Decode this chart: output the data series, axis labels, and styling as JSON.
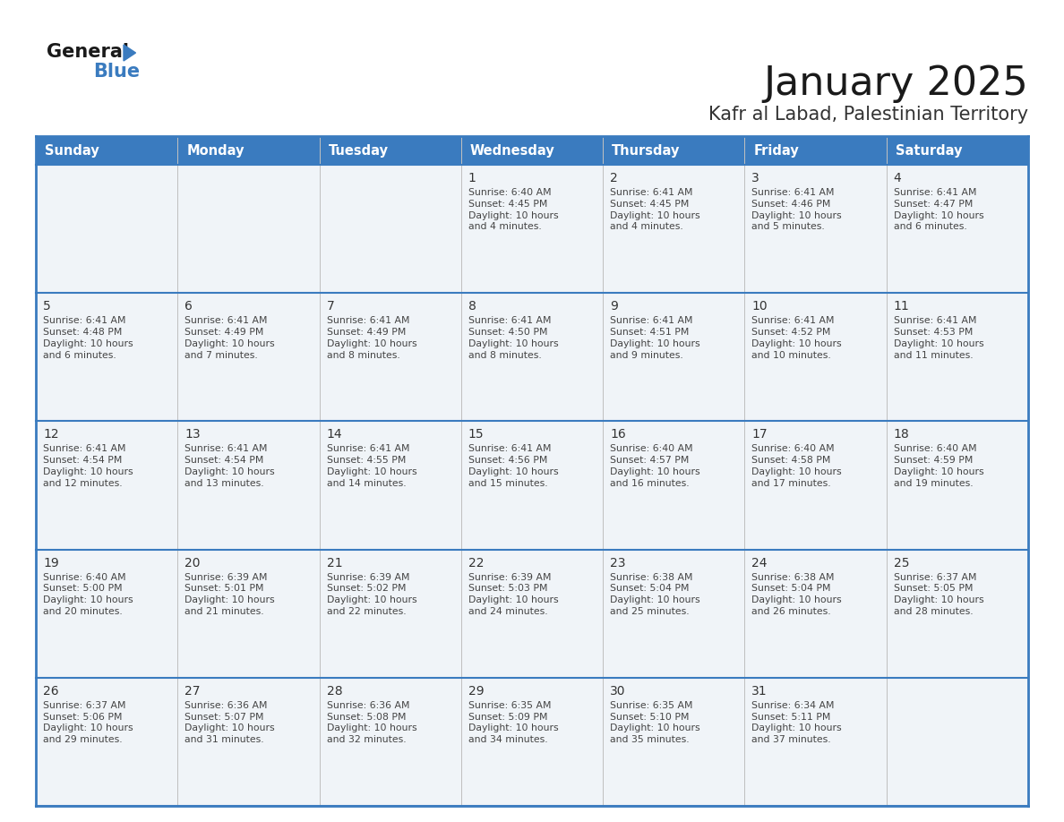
{
  "title": "January 2025",
  "subtitle": "Kafr al Labad, Palestinian Territory",
  "header_color": "#3a7bbf",
  "header_text_color": "#ffffff",
  "cell_bg_color": "#f0f4f8",
  "border_color": "#3a7bbf",
  "text_color": "#333333",
  "days_of_week": [
    "Sunday",
    "Monday",
    "Tuesday",
    "Wednesday",
    "Thursday",
    "Friday",
    "Saturday"
  ],
  "calendar_data": [
    [
      {
        "day": "",
        "info": ""
      },
      {
        "day": "",
        "info": ""
      },
      {
        "day": "",
        "info": ""
      },
      {
        "day": "1",
        "info": "Sunrise: 6:40 AM\nSunset: 4:45 PM\nDaylight: 10 hours\nand 4 minutes."
      },
      {
        "day": "2",
        "info": "Sunrise: 6:41 AM\nSunset: 4:45 PM\nDaylight: 10 hours\nand 4 minutes."
      },
      {
        "day": "3",
        "info": "Sunrise: 6:41 AM\nSunset: 4:46 PM\nDaylight: 10 hours\nand 5 minutes."
      },
      {
        "day": "4",
        "info": "Sunrise: 6:41 AM\nSunset: 4:47 PM\nDaylight: 10 hours\nand 6 minutes."
      }
    ],
    [
      {
        "day": "5",
        "info": "Sunrise: 6:41 AM\nSunset: 4:48 PM\nDaylight: 10 hours\nand 6 minutes."
      },
      {
        "day": "6",
        "info": "Sunrise: 6:41 AM\nSunset: 4:49 PM\nDaylight: 10 hours\nand 7 minutes."
      },
      {
        "day": "7",
        "info": "Sunrise: 6:41 AM\nSunset: 4:49 PM\nDaylight: 10 hours\nand 8 minutes."
      },
      {
        "day": "8",
        "info": "Sunrise: 6:41 AM\nSunset: 4:50 PM\nDaylight: 10 hours\nand 8 minutes."
      },
      {
        "day": "9",
        "info": "Sunrise: 6:41 AM\nSunset: 4:51 PM\nDaylight: 10 hours\nand 9 minutes."
      },
      {
        "day": "10",
        "info": "Sunrise: 6:41 AM\nSunset: 4:52 PM\nDaylight: 10 hours\nand 10 minutes."
      },
      {
        "day": "11",
        "info": "Sunrise: 6:41 AM\nSunset: 4:53 PM\nDaylight: 10 hours\nand 11 minutes."
      }
    ],
    [
      {
        "day": "12",
        "info": "Sunrise: 6:41 AM\nSunset: 4:54 PM\nDaylight: 10 hours\nand 12 minutes."
      },
      {
        "day": "13",
        "info": "Sunrise: 6:41 AM\nSunset: 4:54 PM\nDaylight: 10 hours\nand 13 minutes."
      },
      {
        "day": "14",
        "info": "Sunrise: 6:41 AM\nSunset: 4:55 PM\nDaylight: 10 hours\nand 14 minutes."
      },
      {
        "day": "15",
        "info": "Sunrise: 6:41 AM\nSunset: 4:56 PM\nDaylight: 10 hours\nand 15 minutes."
      },
      {
        "day": "16",
        "info": "Sunrise: 6:40 AM\nSunset: 4:57 PM\nDaylight: 10 hours\nand 16 minutes."
      },
      {
        "day": "17",
        "info": "Sunrise: 6:40 AM\nSunset: 4:58 PM\nDaylight: 10 hours\nand 17 minutes."
      },
      {
        "day": "18",
        "info": "Sunrise: 6:40 AM\nSunset: 4:59 PM\nDaylight: 10 hours\nand 19 minutes."
      }
    ],
    [
      {
        "day": "19",
        "info": "Sunrise: 6:40 AM\nSunset: 5:00 PM\nDaylight: 10 hours\nand 20 minutes."
      },
      {
        "day": "20",
        "info": "Sunrise: 6:39 AM\nSunset: 5:01 PM\nDaylight: 10 hours\nand 21 minutes."
      },
      {
        "day": "21",
        "info": "Sunrise: 6:39 AM\nSunset: 5:02 PM\nDaylight: 10 hours\nand 22 minutes."
      },
      {
        "day": "22",
        "info": "Sunrise: 6:39 AM\nSunset: 5:03 PM\nDaylight: 10 hours\nand 24 minutes."
      },
      {
        "day": "23",
        "info": "Sunrise: 6:38 AM\nSunset: 5:04 PM\nDaylight: 10 hours\nand 25 minutes."
      },
      {
        "day": "24",
        "info": "Sunrise: 6:38 AM\nSunset: 5:04 PM\nDaylight: 10 hours\nand 26 minutes."
      },
      {
        "day": "25",
        "info": "Sunrise: 6:37 AM\nSunset: 5:05 PM\nDaylight: 10 hours\nand 28 minutes."
      }
    ],
    [
      {
        "day": "26",
        "info": "Sunrise: 6:37 AM\nSunset: 5:06 PM\nDaylight: 10 hours\nand 29 minutes."
      },
      {
        "day": "27",
        "info": "Sunrise: 6:36 AM\nSunset: 5:07 PM\nDaylight: 10 hours\nand 31 minutes."
      },
      {
        "day": "28",
        "info": "Sunrise: 6:36 AM\nSunset: 5:08 PM\nDaylight: 10 hours\nand 32 minutes."
      },
      {
        "day": "29",
        "info": "Sunrise: 6:35 AM\nSunset: 5:09 PM\nDaylight: 10 hours\nand 34 minutes."
      },
      {
        "day": "30",
        "info": "Sunrise: 6:35 AM\nSunset: 5:10 PM\nDaylight: 10 hours\nand 35 minutes."
      },
      {
        "day": "31",
        "info": "Sunrise: 6:34 AM\nSunset: 5:11 PM\nDaylight: 10 hours\nand 37 minutes."
      },
      {
        "day": "",
        "info": ""
      }
    ]
  ],
  "logo_general_color": "#1a1a1a",
  "logo_blue_color": "#3a7bbf",
  "logo_triangle_color": "#3a7bbf",
  "title_fontsize": 32,
  "subtitle_fontsize": 15,
  "header_fontsize": 10.5,
  "day_number_fontsize": 10,
  "cell_text_fontsize": 7.8
}
